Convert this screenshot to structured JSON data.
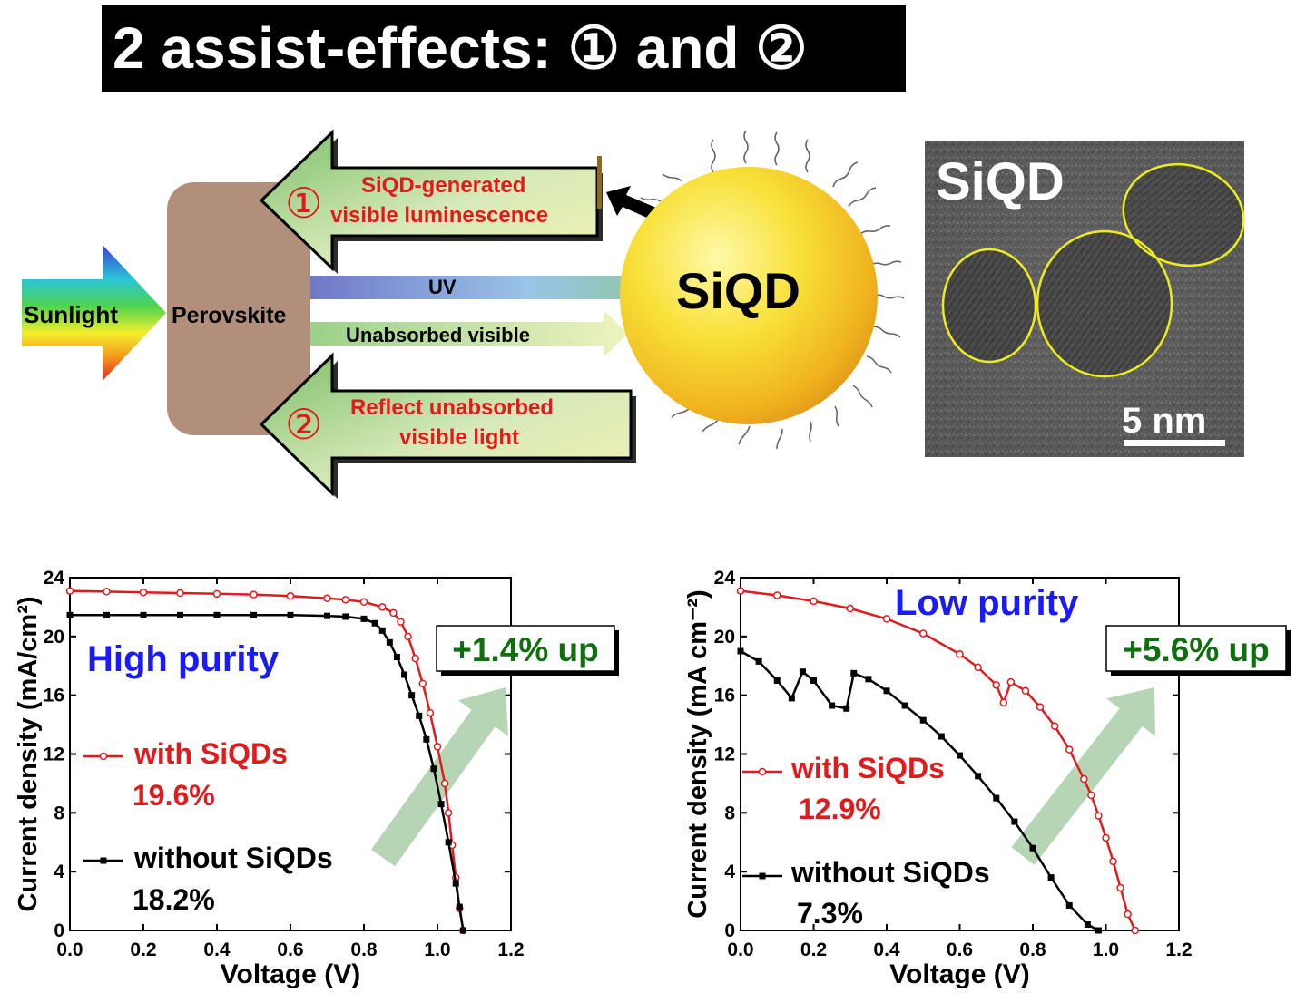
{
  "title": "2 assist-effects: ① and ②",
  "diagram": {
    "sunlight": "Sunlight",
    "perovskite": "Perovskite",
    "uv": "UV",
    "unabsorbed": "Unabsorbed visible",
    "effect1_num": "①",
    "effect1_line1": "SiQD-generated",
    "effect1_line2": "visible luminescence",
    "effect2_num": "②",
    "effect2_line1": "Reflect unabsorbed",
    "effect2_line2": "visible light",
    "siqd_label": "SiQD",
    "tem_label": "SiQD",
    "scale_bar": "5 nm"
  },
  "colors": {
    "red": "#e31a1c",
    "black": "#000000",
    "blue": "#1a1aff",
    "green_text": "#0f6e0f"
  },
  "chart_data": [
    {
      "type": "line",
      "annotation": "High purity",
      "improvement": "+1.4% up",
      "xlabel": "Voltage (V)",
      "ylabel": "Current density (mA/cm²)",
      "xlim": [
        0,
        1.2
      ],
      "ylim": [
        0,
        24
      ],
      "xticks": [
        "0.0",
        "0.2",
        "0.4",
        "0.6",
        "0.8",
        "1.0",
        "1.2"
      ],
      "yticks": [
        "0",
        "4",
        "8",
        "12",
        "16",
        "20",
        "24"
      ],
      "series": [
        {
          "name": "with SiQDs",
          "efficiency": "19.6%",
          "color": "#e31a1c",
          "marker": "circle",
          "x": [
            0.0,
            0.1,
            0.2,
            0.3,
            0.4,
            0.5,
            0.6,
            0.7,
            0.75,
            0.8,
            0.85,
            0.88,
            0.9,
            0.92,
            0.94,
            0.96,
            0.98,
            1.0,
            1.02,
            1.03,
            1.04,
            1.05,
            1.06,
            1.07
          ],
          "y": [
            23.1,
            23.05,
            23.0,
            22.95,
            22.9,
            22.85,
            22.75,
            22.6,
            22.5,
            22.35,
            22.0,
            21.6,
            21.0,
            20.0,
            18.5,
            16.8,
            14.8,
            12.5,
            10.0,
            8.0,
            5.8,
            3.6,
            1.5,
            0.0
          ]
        },
        {
          "name": "without SiQDs",
          "efficiency": "18.2%",
          "color": "#000000",
          "marker": "square",
          "x": [
            0.0,
            0.1,
            0.2,
            0.3,
            0.4,
            0.5,
            0.6,
            0.7,
            0.75,
            0.8,
            0.83,
            0.85,
            0.87,
            0.89,
            0.91,
            0.93,
            0.95,
            0.97,
            0.99,
            1.01,
            1.03,
            1.05,
            1.06,
            1.07
          ],
          "y": [
            21.45,
            21.45,
            21.45,
            21.45,
            21.45,
            21.45,
            21.45,
            21.4,
            21.35,
            21.2,
            20.9,
            20.4,
            19.6,
            18.6,
            17.4,
            16.0,
            14.6,
            13.0,
            11.0,
            8.6,
            6.0,
            3.2,
            1.6,
            0.0
          ]
        }
      ]
    },
    {
      "type": "line",
      "annotation": "Low purity",
      "improvement": "+5.6% up",
      "xlabel": "Voltage (V)",
      "ylabel": "Current density (mA cm⁻²)",
      "xlim": [
        0,
        1.2
      ],
      "ylim": [
        0,
        24
      ],
      "xticks": [
        "0.0",
        "0.2",
        "0.4",
        "0.6",
        "0.8",
        "1.0",
        "1.2"
      ],
      "yticks": [
        "0",
        "4",
        "8",
        "12",
        "16",
        "20",
        "24"
      ],
      "series": [
        {
          "name": "with SiQDs",
          "efficiency": "12.9%",
          "color": "#e31a1c",
          "marker": "circle",
          "x": [
            0.0,
            0.1,
            0.2,
            0.3,
            0.4,
            0.5,
            0.6,
            0.65,
            0.7,
            0.72,
            0.74,
            0.78,
            0.82,
            0.86,
            0.9,
            0.94,
            0.96,
            0.98,
            1.0,
            1.02,
            1.04,
            1.06,
            1.08
          ],
          "y": [
            23.1,
            22.8,
            22.4,
            21.9,
            21.2,
            20.2,
            18.8,
            17.9,
            16.7,
            15.5,
            16.9,
            16.3,
            15.2,
            13.9,
            12.3,
            10.3,
            9.2,
            7.8,
            6.3,
            4.7,
            2.9,
            1.1,
            0.0
          ]
        },
        {
          "name": "without SiQDs",
          "efficiency": "7.3%",
          "color": "#000000",
          "marker": "square",
          "x": [
            0.0,
            0.05,
            0.1,
            0.14,
            0.17,
            0.2,
            0.25,
            0.29,
            0.31,
            0.35,
            0.4,
            0.45,
            0.5,
            0.55,
            0.6,
            0.65,
            0.7,
            0.75,
            0.8,
            0.85,
            0.9,
            0.95,
            0.98
          ],
          "y": [
            19.0,
            18.3,
            17.0,
            15.8,
            17.6,
            17.0,
            15.3,
            15.1,
            17.5,
            17.1,
            16.3,
            15.3,
            14.3,
            13.2,
            11.9,
            10.5,
            9.0,
            7.4,
            5.6,
            3.6,
            1.7,
            0.4,
            0.0
          ]
        }
      ]
    }
  ]
}
